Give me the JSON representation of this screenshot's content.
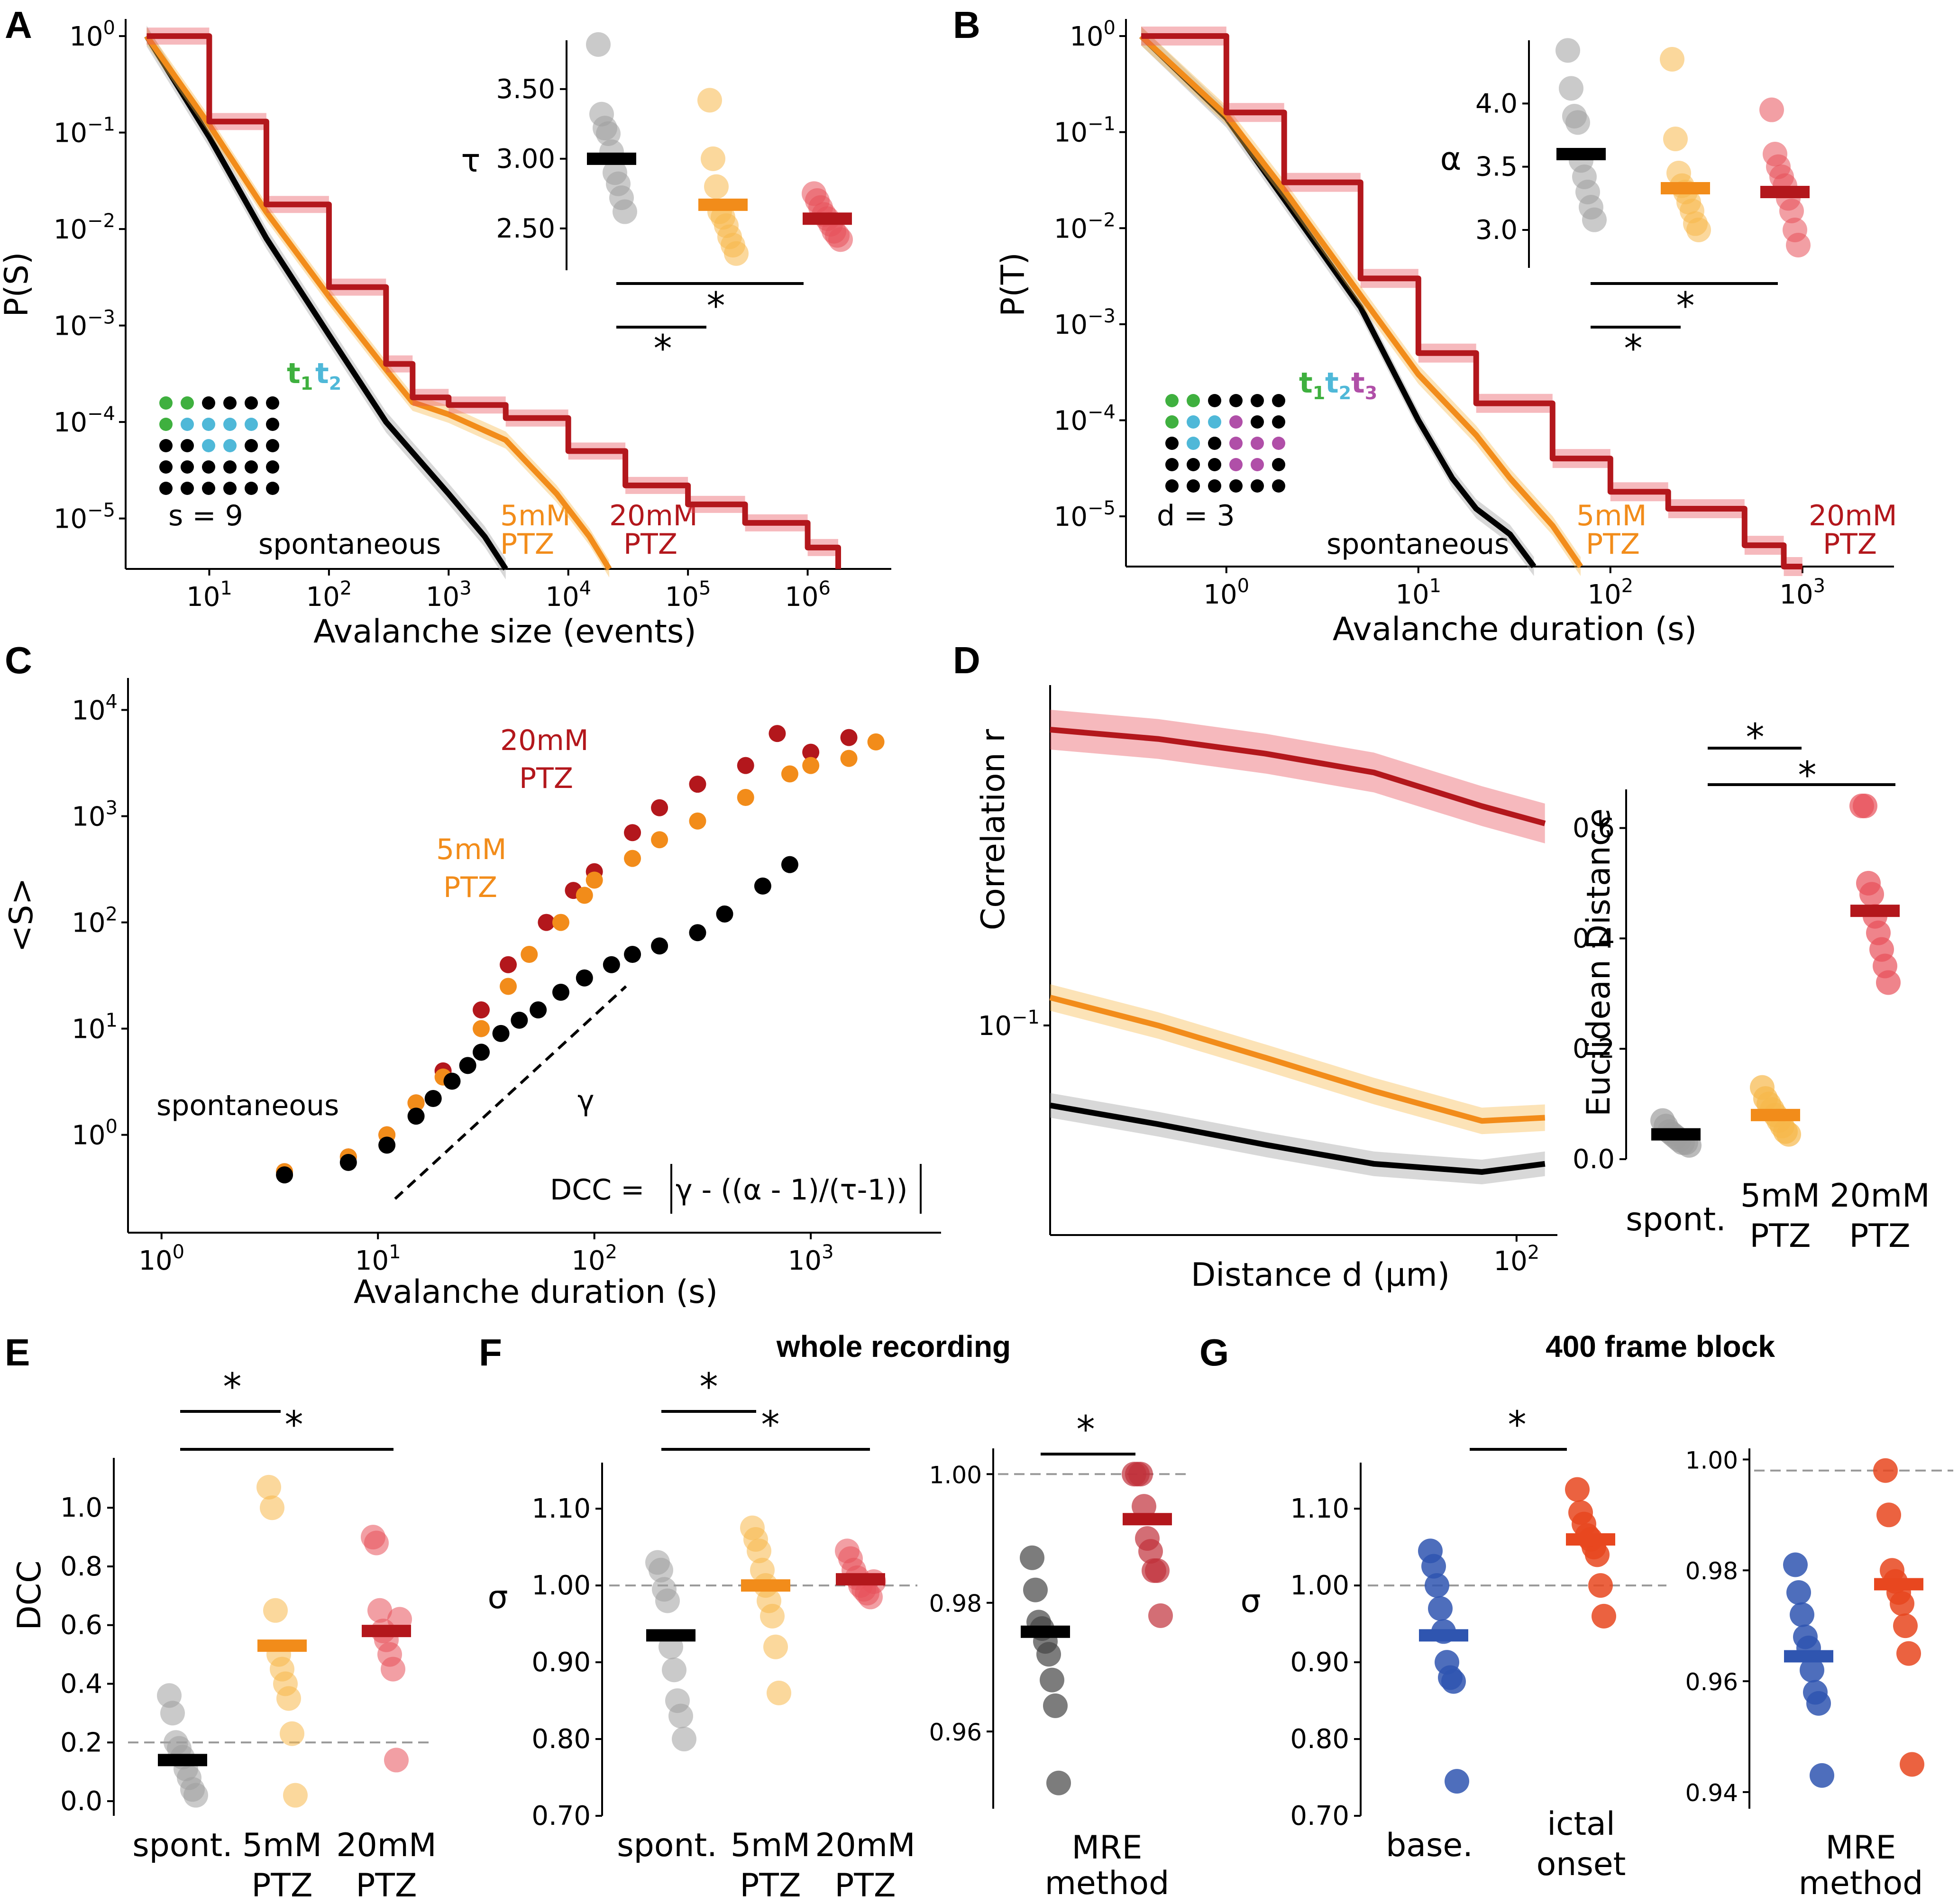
{
  "colors": {
    "spont_line": "#000000",
    "spont_dot": "#9e9e9e",
    "ptz5": "#f28c1a",
    "ptz5_dot": "#f7b84a",
    "ptz20": "#b3171c",
    "ptz20_dot": "#e8505a",
    "base": "#2f55b0",
    "ictal": "#e8471f",
    "dot_green": "#3fb03f",
    "dot_cyan": "#4fb8d8",
    "dot_magenta": "#b04fa8"
  },
  "panel_labels": [
    "A",
    "B",
    "C",
    "D",
    "E",
    "F",
    "G"
  ],
  "chart_data": [
    {
      "id": "A",
      "type": "line",
      "title": "",
      "xlabel": "Avalanche size (events)",
      "ylabel": "P(S)",
      "xscale": "log",
      "yscale": "log",
      "xlim": [
        2,
        5000000
      ],
      "ylim": [
        3e-06,
        1.2
      ],
      "xticks": [
        "10^1",
        "10^2",
        "10^3",
        "10^4",
        "10^5",
        "10^6"
      ],
      "yticks": [
        "10^0",
        "10^-1",
        "10^-2",
        "10^-3",
        "10^-4",
        "10^-5"
      ],
      "series": [
        {
          "name": "spontaneous",
          "x": [
            3,
            10,
            30,
            100,
            300,
            1000,
            2000,
            3000
          ],
          "y": [
            1,
            0.09,
            0.008,
            0.0008,
            0.0001,
            1.8e-05,
            6.5e-06,
            3e-06
          ]
        },
        {
          "name": "5mM PTZ",
          "x": [
            3,
            10,
            30,
            100,
            300,
            500,
            1000,
            3000,
            8000,
            15000,
            22000
          ],
          "y": [
            1,
            0.12,
            0.015,
            0.002,
            0.00035,
            0.00016,
            0.00012,
            6.5e-05,
            1.8e-05,
            6.5e-06,
            3e-06
          ]
        },
        {
          "name": "20mM PTZ",
          "x": [
            3,
            10,
            30,
            100,
            300,
            500,
            1000,
            3000,
            10000,
            30000,
            100000,
            300000,
            1000000,
            1800000
          ],
          "y": [
            1,
            0.13,
            0.018,
            0.0025,
            0.0004,
            0.00018,
            0.00015,
            0.00011,
            5e-05,
            2.2e-05,
            1.4e-05,
            9e-06,
            5e-06,
            3e-06
          ]
        }
      ],
      "annotations": [
        "spontaneous",
        "5mM",
        "PTZ",
        "20mM",
        "PTZ",
        "s = 9"
      ],
      "legend_dots": [
        "t",
        "1",
        "t",
        "2"
      ],
      "inset": {
        "ylabel": "τ",
        "yticks": [
          "2.50",
          "3.00",
          "3.50"
        ],
        "ylim": [
          2.2,
          3.85
        ],
        "groups": [
          {
            "name": "spontaneous",
            "mean": 3.0,
            "points": [
              3.82,
              3.32,
              3.22,
              3.18,
              3.05,
              2.9,
              2.82,
              2.72,
              2.62
            ]
          },
          {
            "name": "5mM PTZ",
            "mean": 2.67,
            "points": [
              3.42,
              3.0,
              2.8,
              2.62,
              2.58,
              2.52,
              2.44,
              2.38,
              2.32
            ]
          },
          {
            "name": "20mM PTZ",
            "mean": 2.57,
            "points": [
              2.75,
              2.7,
              2.65,
              2.6,
              2.57,
              2.53,
              2.48,
              2.45,
              2.42
            ]
          }
        ],
        "significance": [
          "*",
          "*"
        ]
      }
    },
    {
      "id": "B",
      "type": "line",
      "title": "",
      "xlabel": "Avalanche duration (s)",
      "ylabel": "P(T)",
      "xscale": "log",
      "yscale": "log",
      "xlim": [
        0.3,
        3000
      ],
      "ylim": [
        3e-06,
        1.2
      ],
      "xticks": [
        "10^0",
        "10^1",
        "10^2",
        "10^3"
      ],
      "yticks": [
        "10^0",
        "10^-1",
        "10^-2",
        "10^-3",
        "10^-4",
        "10^-5"
      ],
      "series": [
        {
          "name": "spontaneous",
          "x": [
            0.36,
            1,
            2,
            5,
            10,
            15,
            20,
            30,
            40
          ],
          "y": [
            1,
            0.14,
            0.02,
            0.0015,
            0.0001,
            2.5e-05,
            1.2e-05,
            6.5e-06,
            3e-06
          ]
        },
        {
          "name": "5mM PTZ",
          "x": [
            0.36,
            1,
            2,
            5,
            10,
            20,
            30,
            50,
            70
          ],
          "y": [
            1,
            0.15,
            0.025,
            0.002,
            0.0003,
            7e-05,
            2.5e-05,
            8e-06,
            3e-06
          ]
        },
        {
          "name": "20mM PTZ",
          "x": [
            0.36,
            1,
            2,
            5,
            10,
            20,
            50,
            100,
            200,
            500,
            800,
            1000
          ],
          "y": [
            1,
            0.16,
            0.03,
            0.003,
            0.0005,
            0.00015,
            4e-05,
            1.8e-05,
            1.2e-05,
            5e-06,
            3e-06,
            3e-06
          ]
        }
      ],
      "annotations": [
        "spontaneous",
        "5mM",
        "PTZ",
        "20mM",
        "PTZ",
        "d = 3"
      ],
      "legend_dots": [
        "t",
        "1",
        "t",
        "2",
        "t",
        "3"
      ],
      "inset": {
        "ylabel": "α",
        "yticks": [
          "3.0",
          "3.5",
          "4.0"
        ],
        "ylim": [
          2.7,
          4.5
        ],
        "groups": [
          {
            "name": "spontaneous",
            "mean": 3.6,
            "points": [
              4.42,
              4.12,
              3.9,
              3.85,
              3.55,
              3.42,
              3.3,
              3.18,
              3.08
            ]
          },
          {
            "name": "5mM PTZ",
            "mean": 3.33,
            "points": [
              4.35,
              3.72,
              3.45,
              3.35,
              3.3,
              3.22,
              3.15,
              3.05,
              3.0
            ]
          },
          {
            "name": "20mM PTZ",
            "mean": 3.3,
            "points": [
              3.95,
              3.6,
              3.5,
              3.42,
              3.35,
              3.25,
              3.15,
              3.0,
              2.88
            ]
          }
        ],
        "significance": [
          "*",
          "*"
        ]
      }
    },
    {
      "id": "C",
      "type": "scatter",
      "xlabel": "Avalanche duration (s)",
      "ylabel": "<S>",
      "xscale": "log",
      "yscale": "log",
      "xlim": [
        0.7,
        4000
      ],
      "ylim": [
        0.12,
        20000
      ],
      "xticks": [
        "10^0",
        "10^1",
        "10^2",
        "10^3"
      ],
      "yticks": [
        "10^0",
        "10^1",
        "10^2",
        "10^3",
        "10^4"
      ],
      "series": [
        {
          "name": "spontaneous",
          "x": [
            3.7,
            7.3,
            11,
            15,
            18,
            22,
            26,
            30,
            37,
            45,
            55,
            70,
            90,
            120,
            150,
            200,
            300,
            400,
            600,
            800
          ],
          "y": [
            0.42,
            0.55,
            0.8,
            1.5,
            2.2,
            3.2,
            4.5,
            6,
            9,
            12,
            15,
            22,
            30,
            40,
            50,
            60,
            80,
            120,
            220,
            350
          ]
        },
        {
          "name": "5mM PTZ",
          "x": [
            3.7,
            7.3,
            11,
            15,
            20,
            30,
            40,
            50,
            70,
            90,
            100,
            150,
            200,
            300,
            500,
            800,
            1000,
            1500,
            2000
          ],
          "y": [
            0.45,
            0.62,
            1.0,
            2.0,
            3.5,
            10,
            25,
            50,
            100,
            180,
            250,
            400,
            600,
            900,
            1500,
            2500,
            3000,
            3500,
            5000
          ]
        },
        {
          "name": "20mM PTZ",
          "x": [
            3.7,
            7.3,
            11,
            15,
            20,
            30,
            40,
            60,
            80,
            100,
            150,
            200,
            300,
            500,
            700,
            1000,
            1500
          ],
          "y": [
            0.45,
            0.62,
            1.0,
            2.0,
            4,
            15,
            40,
            100,
            200,
            300,
            700,
            1200,
            2000,
            3000,
            6000,
            4000,
            5500
          ]
        }
      ],
      "fit_label": "γ",
      "annotations": [
        "spontaneous",
        "20mM",
        "PTZ",
        "5mM",
        "PTZ"
      ],
      "formula": {
        "lhs": "DCC =",
        "body": "γ - ((α - 1)/(τ-1))"
      }
    },
    {
      "id": "D",
      "type": "line",
      "xlabel": "Distance d (μm)",
      "ylabel": "Correlation r",
      "xscale": "log",
      "yscale": "log",
      "xlim": [
        5,
        130
      ],
      "ylim": [
        0.035,
        0.55
      ],
      "xticks": [
        "10^2"
      ],
      "yticks": [
        "10^-1"
      ],
      "series": [
        {
          "name": "20mM PTZ",
          "x": [
            5,
            10,
            20,
            40,
            80,
            120
          ],
          "y": [
            0.44,
            0.42,
            0.39,
            0.355,
            0.3,
            0.275
          ]
        },
        {
          "name": "5mM PTZ",
          "x": [
            5,
            10,
            20,
            40,
            80,
            120
          ],
          "y": [
            0.115,
            0.1,
            0.085,
            0.072,
            0.062,
            0.063
          ]
        },
        {
          "name": "spontaneous",
          "x": [
            5,
            10,
            20,
            40,
            80,
            120
          ],
          "y": [
            0.067,
            0.061,
            0.055,
            0.05,
            0.048,
            0.05
          ]
        }
      ],
      "inset": {
        "ylabel": "Euclidean Distance",
        "yticks": [
          "0.0",
          "0.2",
          "0.4",
          "0.6"
        ],
        "ylim": [
          0,
          0.67
        ],
        "categories": [
          "spont.",
          "5mM PTZ",
          "20mM PTZ"
        ],
        "category_lines": [
          [
            "spont."
          ],
          [
            "5mM",
            "PTZ"
          ],
          [
            "20mM",
            "PTZ"
          ]
        ],
        "groups": [
          {
            "name": "spont.",
            "mean": 0.045,
            "points": [
              0.07,
              0.06,
              0.05,
              0.045,
              0.04,
              0.035,
              0.03,
              0.03,
              0.025
            ]
          },
          {
            "name": "5mM PTZ",
            "mean": 0.08,
            "points": [
              0.13,
              0.11,
              0.1,
              0.09,
              0.08,
              0.07,
              0.06,
              0.05,
              0.045
            ]
          },
          {
            "name": "20mM PTZ",
            "mean": 0.45,
            "points": [
              0.64,
              0.64,
              0.5,
              0.48,
              0.44,
              0.41,
              0.38,
              0.35,
              0.32
            ]
          }
        ],
        "significance": [
          "*",
          "*"
        ]
      }
    },
    {
      "id": "E",
      "type": "scatter",
      "ylabel": "DCC",
      "ylim": [
        -0.05,
        1.17
      ],
      "yticks": [
        "0.0",
        "0.2",
        "0.4",
        "0.6",
        "0.8",
        "1.0"
      ],
      "reference_line": 0.2,
      "categories": [
        "spont.",
        "5mM PTZ",
        "20mM PTZ"
      ],
      "category_lines": [
        [
          "spont."
        ],
        [
          "5mM",
          "PTZ"
        ],
        [
          "20mM",
          "PTZ"
        ]
      ],
      "groups": [
        {
          "name": "spont.",
          "mean": 0.14,
          "points": [
            0.36,
            0.3,
            0.2,
            0.18,
            0.15,
            0.11,
            0.08,
            0.04,
            0.02
          ]
        },
        {
          "name": "5mM PTZ",
          "mean": 0.53,
          "points": [
            1.07,
            1.0,
            0.65,
            0.5,
            0.45,
            0.4,
            0.35,
            0.23,
            0.02
          ]
        },
        {
          "name": "20mM PTZ",
          "mean": 0.58,
          "points": [
            0.9,
            0.88,
            0.65,
            0.58,
            0.55,
            0.5,
            0.45,
            0.14,
            0.62
          ]
        }
      ],
      "significance": [
        "*",
        "*"
      ]
    },
    {
      "id": "F",
      "type": "scatter",
      "title": "whole recording",
      "left": {
        "ylabel": "σ",
        "ylim": [
          0.7,
          1.16
        ],
        "yticks": [
          "0.70",
          "0.80",
          "0.90",
          "1.00",
          "1.10"
        ],
        "reference_line": 1.0,
        "categories": [
          "spont.",
          "5mM PTZ",
          "20mM PTZ"
        ],
        "category_lines": [
          [
            "spont."
          ],
          [
            "5mM",
            "PTZ"
          ],
          [
            "20mM",
            "PTZ"
          ]
        ],
        "groups": [
          {
            "name": "spont.",
            "mean": 0.935,
            "points": [
              1.03,
              1.02,
              0.995,
              0.98,
              0.92,
              0.89,
              0.85,
              0.83,
              0.8
            ]
          },
          {
            "name": "5mM PTZ",
            "mean": 1.0,
            "points": [
              1.075,
              1.06,
              1.045,
              1.02,
              1.0,
              0.98,
              0.96,
              0.92,
              0.86
            ]
          },
          {
            "name": "20mM PTZ",
            "mean": 1.008,
            "points": [
              1.045,
              1.035,
              1.02,
              1.01,
              1.0,
              0.995,
              0.99,
              0.985,
              1.005
            ]
          }
        ],
        "significance": [
          "*",
          "*"
        ]
      },
      "right": {
        "ylim": [
          0.948,
          1.004
        ],
        "yticks": [
          "0.96",
          "0.98",
          "1.00"
        ],
        "reference_line": 1.0,
        "xlabel_lines": [
          "MRE",
          "method"
        ],
        "groups": [
          {
            "name": "spont.",
            "mean": 0.9755,
            "points": [
              0.987,
              0.982,
              0.977,
              0.976,
              0.974,
              0.972,
              0.968,
              0.964,
              0.952
            ]
          },
          {
            "name": "20mM PTZ",
            "mean": 0.993,
            "points": [
              1.0,
              1.0,
              1.0,
              0.995,
              0.99,
              0.988,
              0.985,
              0.985,
              0.978
            ]
          }
        ],
        "significance": [
          "*"
        ]
      }
    },
    {
      "id": "G",
      "type": "scatter",
      "title": "400 frame block",
      "left": {
        "ylabel": "σ",
        "ylim": [
          0.7,
          1.16
        ],
        "yticks": [
          "0.70",
          "0.80",
          "0.90",
          "1.00",
          "1.10"
        ],
        "reference_line": 1.0,
        "categories": [
          "base.",
          "ictal onset"
        ],
        "category_lines": [
          [
            "base."
          ],
          [
            "ictal",
            "onset"
          ]
        ],
        "groups": [
          {
            "name": "base.",
            "mean": 0.935,
            "points": [
              1.045,
              1.025,
              1.0,
              0.97,
              0.94,
              0.9,
              0.88,
              0.875,
              0.745
            ]
          },
          {
            "name": "ictal onset",
            "mean": 1.06,
            "points": [
              1.125,
              1.095,
              1.08,
              1.065,
              1.06,
              1.05,
              1.04,
              1.0,
              0.96
            ]
          }
        ],
        "significance": [
          "*"
        ]
      },
      "right": {
        "ylim": [
          0.937,
          1.002
        ],
        "yticks": [
          "0.94",
          "0.96",
          "0.98",
          "1.00"
        ],
        "reference_line": 0.998,
        "xlabel_lines": [
          "MRE",
          "method"
        ],
        "groups": [
          {
            "name": "base.",
            "mean": 0.9645,
            "points": [
              0.981,
              0.976,
              0.972,
              0.968,
              0.966,
              0.962,
              0.958,
              0.956,
              0.943
            ]
          },
          {
            "name": "ictal onset",
            "mean": 0.9775,
            "points": [
              0.998,
              0.99,
              0.98,
              0.978,
              0.976,
              0.974,
              0.97,
              0.965,
              0.945
            ]
          }
        ]
      }
    }
  ]
}
